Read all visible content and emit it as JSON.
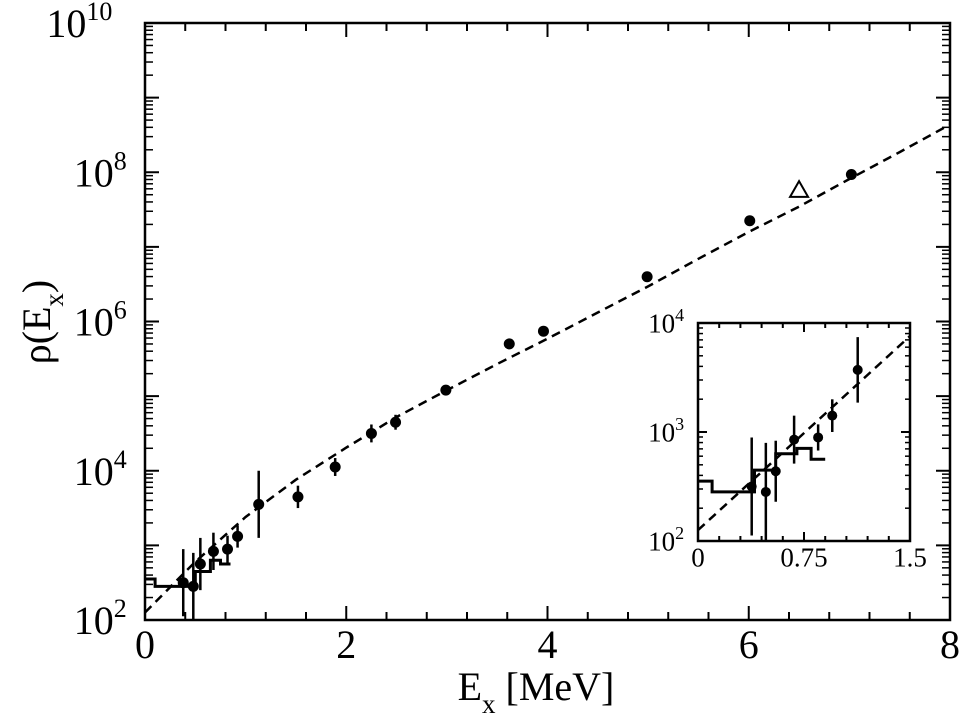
{
  "chart_data": [
    {
      "type": "scatter",
      "panel": "main",
      "x_range": [
        0,
        8
      ],
      "y_range_log10": [
        2,
        10
      ],
      "x_ticks": [
        {
          "v": 0,
          "label": "0"
        },
        {
          "v": 2,
          "label": "2"
        },
        {
          "v": 4,
          "label": "4"
        },
        {
          "v": 6,
          "label": "6"
        },
        {
          "v": 8,
          "label": "8"
        }
      ],
      "y_ticks": [
        {
          "e": 2,
          "base": "10",
          "exp": "2"
        },
        {
          "e": 4,
          "base": "10",
          "exp": "4"
        },
        {
          "e": 6,
          "base": "10",
          "exp": "6"
        },
        {
          "e": 8,
          "base": "10",
          "exp": "8"
        },
        {
          "e": 10,
          "base": "10",
          "exp": "10"
        }
      ],
      "xlabel": {
        "main": "E",
        "sub": "x",
        "rest": " [MeV]"
      },
      "ylabel": {
        "pre": "ρ(E",
        "sub": "x",
        "post": ")"
      },
      "fit_curve": {
        "name": "dashed",
        "x": [
          0,
          0.5,
          1,
          1.5,
          2,
          2.5,
          3,
          3.5,
          4,
          4.5,
          5,
          5.5,
          6,
          6.5,
          7,
          7.5,
          8
        ],
        "log10_y": [
          2.1,
          2.78,
          3.38,
          3.88,
          4.31,
          4.72,
          5.08,
          5.43,
          5.77,
          6.12,
          6.47,
          6.84,
          7.2,
          7.54,
          7.91,
          8.27,
          8.64
        ]
      },
      "histogram": {
        "name": "levels",
        "steps": [
          [
            0,
            2.55
          ],
          [
            0.1,
            2.45
          ],
          [
            0.4,
            2.45
          ],
          [
            0.5,
            2.65
          ],
          [
            0.65,
            2.8
          ],
          [
            0.75,
            2.75
          ]
        ],
        "x_end": 0.85
      },
      "points": [
        {
          "x": 0.38,
          "log10_y": 2.5,
          "err": 0.45
        },
        {
          "x": 0.48,
          "log10_y": 2.45,
          "err": 0.45
        },
        {
          "x": 0.55,
          "log10_y": 2.75,
          "err": 0.35
        },
        {
          "x": 0.68,
          "log10_y": 2.92,
          "err": 0.25
        },
        {
          "x": 0.82,
          "log10_y": 2.95,
          "err": 0.18
        },
        {
          "x": 0.92,
          "log10_y": 3.12,
          "err": 0.15
        },
        {
          "x": 1.13,
          "log10_y": 3.55,
          "err": 0.45
        },
        {
          "x": 1.52,
          "log10_y": 3.65,
          "err": 0.15
        },
        {
          "x": 1.89,
          "log10_y": 4.05,
          "err": 0.12
        },
        {
          "x": 2.25,
          "log10_y": 4.5,
          "err": 0.12
        },
        {
          "x": 2.49,
          "log10_y": 4.65,
          "err": 0.1
        },
        {
          "x": 2.99,
          "log10_y": 5.08,
          "err": 0.05
        },
        {
          "x": 3.62,
          "log10_y": 5.7,
          "err": 0.07
        },
        {
          "x": 3.96,
          "log10_y": 5.87,
          "err": 0.05
        },
        {
          "x": 4.99,
          "log10_y": 6.6,
          "err": 0.05
        },
        {
          "x": 6.01,
          "log10_y": 7.35,
          "err": 0.05
        },
        {
          "x": 7.02,
          "log10_y": 7.97,
          "err": 0.05
        }
      ],
      "triangle_point": {
        "x": 6.5,
        "log10_y": 7.76
      }
    },
    {
      "type": "scatter",
      "panel": "inset",
      "x_range": [
        0,
        1.5
      ],
      "y_range_log10": [
        2,
        4
      ],
      "x_ticks": [
        {
          "v": 0,
          "label": "0"
        },
        {
          "v": 0.75,
          "label": "0.75"
        },
        {
          "v": 1.5,
          "label": "1.5"
        }
      ],
      "y_ticks": [
        {
          "e": 2,
          "base": "10",
          "exp": "2"
        },
        {
          "e": 3,
          "base": "10",
          "exp": "3"
        },
        {
          "e": 4,
          "base": "10",
          "exp": "4"
        }
      ],
      "fit_curve": {
        "name": "dashed",
        "x": [
          0,
          1.5
        ],
        "log10_y": [
          2.1,
          3.88
        ]
      },
      "histogram": {
        "name": "levels",
        "steps": [
          [
            0,
            2.55
          ],
          [
            0.1,
            2.45
          ],
          [
            0.4,
            2.65
          ],
          [
            0.55,
            2.8
          ],
          [
            0.7,
            2.85
          ],
          [
            0.8,
            2.75
          ]
        ],
        "x_end": 0.9
      },
      "points": [
        {
          "x": 0.38,
          "log10_y": 2.5,
          "err": 0.45
        },
        {
          "x": 0.48,
          "log10_y": 2.45,
          "err": 0.45
        },
        {
          "x": 0.55,
          "log10_y": 2.64,
          "err": 0.28
        },
        {
          "x": 0.68,
          "log10_y": 2.93,
          "err": 0.22
        },
        {
          "x": 0.85,
          "log10_y": 2.95,
          "err": 0.12
        },
        {
          "x": 0.95,
          "log10_y": 3.15,
          "err": 0.15
        },
        {
          "x": 1.13,
          "log10_y": 3.57,
          "err": 0.3
        }
      ]
    }
  ]
}
